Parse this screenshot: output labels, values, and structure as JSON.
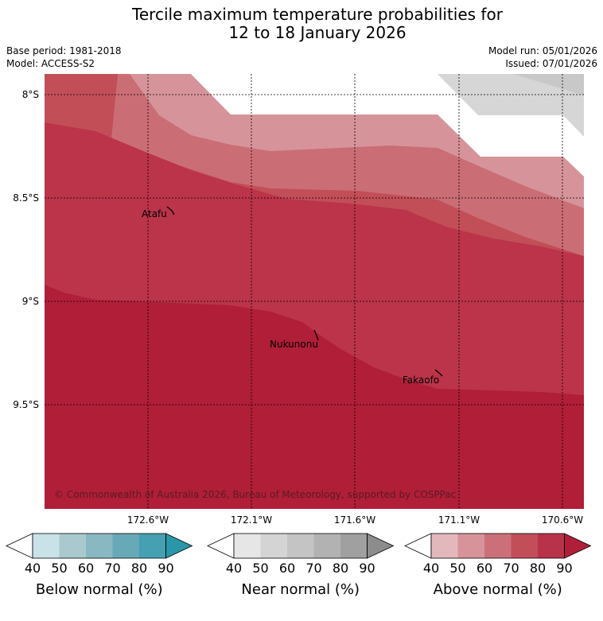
{
  "header": {
    "title_line1": "Tercile maximum temperature probabilities for",
    "title_line2": "12 to 18 January 2026",
    "base_period": "Base period: 1981-2018",
    "model": "Model: ACCESS-S2",
    "model_run": "Model run: 05/01/2026",
    "issued": "Issued: 07/01/2026"
  },
  "map": {
    "lat_labels": [
      "8°S",
      "8.5°S",
      "9°S",
      "9.5°S"
    ],
    "lon_labels": [
      "172.6°W",
      "172.1°W",
      "171.6°W",
      "171.1°W",
      "170.6°W"
    ],
    "places": [
      {
        "name": "Atafu"
      },
      {
        "name": "Nukunonu"
      },
      {
        "name": "Fakaofo"
      }
    ],
    "copyright": "© Commonwealth of Australia 2026, Bureau of Meteorology, supported by COSPPac",
    "bands_above_normal_pct": [
      40,
      50,
      60,
      70,
      80,
      90
    ],
    "bands_near_normal_pct": [
      40,
      50
    ]
  },
  "colorbars": [
    {
      "label": "Below normal (%)",
      "ticks": [
        "40",
        "50",
        "60",
        "70",
        "80",
        "90"
      ],
      "colors": [
        "#ffffff",
        "#c8e2e8",
        "#a9c9cf",
        "#89b8c3",
        "#68a9b7",
        "#45a0b1",
        "#2a96a8"
      ]
    },
    {
      "label": "Near normal (%)",
      "ticks": [
        "40",
        "50",
        "60",
        "70",
        "80",
        "90"
      ],
      "colors": [
        "#ffffff",
        "#e6e6e6",
        "#d4d4d4",
        "#c4c4c4",
        "#b2b2b2",
        "#a0a0a0",
        "#8c8c8c"
      ]
    },
    {
      "label": "Above normal (%)",
      "ticks": [
        "40",
        "50",
        "60",
        "70",
        "80",
        "90"
      ],
      "colors": [
        "#ffffff",
        "#e3b8bc",
        "#d6949a",
        "#cb7079",
        "#c24e59",
        "#b83249",
        "#b01e3a"
      ]
    }
  ],
  "colors": {
    "above_40": "#e3b8bc",
    "above_50": "#d6949a",
    "above_60": "#cb6d75",
    "above_70": "#c24e57",
    "above_80": "#bb3449",
    "above_90": "#b01e38",
    "near_40": "#d6d6d6",
    "near_50": "#c8c8c8"
  }
}
